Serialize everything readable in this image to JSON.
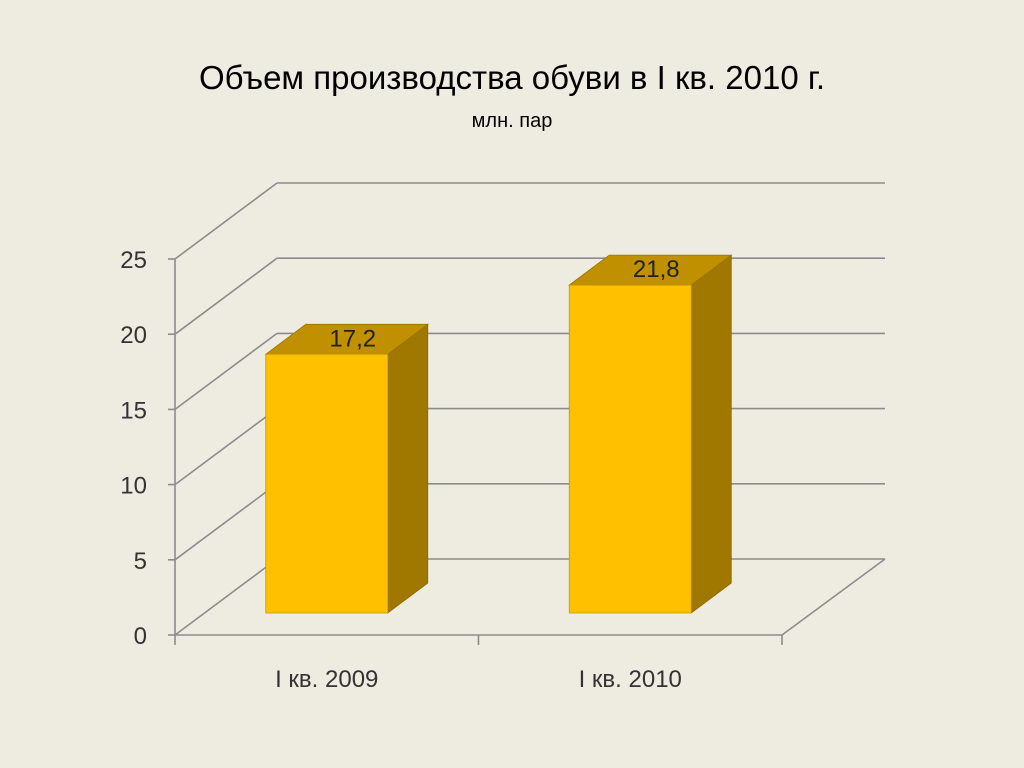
{
  "chart_data": {
    "type": "bar",
    "title": "Объем производства обуви в I кв. 2010 г.",
    "subtitle": "млн. пар",
    "categories": [
      "I кв. 2009",
      "I кв. 2010"
    ],
    "values": [
      17.2,
      21.8
    ],
    "data_labels": [
      "17,2",
      "21,8"
    ],
    "ylim": [
      0,
      25
    ],
    "y_ticks": [
      0,
      5,
      10,
      15,
      20,
      25
    ],
    "grid": true,
    "style": "3d-column",
    "colors": {
      "bar_front": "#FFC000",
      "bar_top": "#C09000",
      "bar_side": "#A07800",
      "gridline": "#8C8C8C",
      "background": "#EEECE1"
    }
  }
}
